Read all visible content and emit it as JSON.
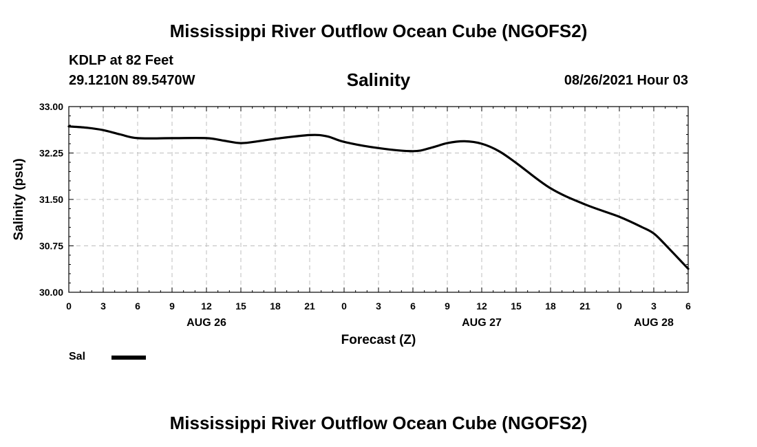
{
  "header": {
    "title": "Mississippi River Outflow Ocean Cube (NGOFS2)",
    "station": "KDLP at 82 Feet",
    "coordinates": "29.1210N  89.5470W",
    "variable": "Salinity",
    "datetime": "08/26/2021 Hour 03"
  },
  "footer": {
    "title": "Mississippi River Outflow Ocean Cube (NGOFS2)"
  },
  "legend": {
    "label": "Sal",
    "color": "#000000"
  },
  "chart_data": {
    "type": "line",
    "title": "Salinity",
    "xlabel": "Forecast (Z)",
    "ylabel": "Salinity (psu)",
    "xlim": [
      0,
      54
    ],
    "ylim": [
      30.0,
      33.0
    ],
    "grid": true,
    "x_tick_values": [
      0,
      3,
      6,
      9,
      12,
      15,
      18,
      21,
      24,
      27,
      30,
      33,
      36,
      39,
      42,
      45,
      48,
      51,
      54
    ],
    "x_tick_labels": [
      "0",
      "3",
      "6",
      "9",
      "12",
      "15",
      "18",
      "21",
      "0",
      "3",
      "6",
      "9",
      "12",
      "15",
      "18",
      "21",
      "0",
      "3",
      "6"
    ],
    "y_tick_values": [
      30.0,
      30.75,
      31.5,
      32.25,
      33.0
    ],
    "y_tick_labels": [
      "30.00",
      "30.75",
      "31.50",
      "32.25",
      "33.00"
    ],
    "date_labels": [
      {
        "label": "AUG 26",
        "x": 12
      },
      {
        "label": "AUG 27",
        "x": 36
      },
      {
        "label": "AUG 28",
        "x": 51
      }
    ],
    "series": [
      {
        "name": "Sal",
        "color": "#000000",
        "x": [
          0,
          1.5,
          3,
          4.5,
          6,
          9,
          12,
          13.5,
          15,
          16.5,
          18,
          21,
          22.5,
          24,
          27,
          30,
          31.5,
          33,
          34.5,
          36,
          37.5,
          39,
          42,
          45,
          48,
          50,
          51,
          52,
          54
        ],
        "y": [
          32.68,
          32.66,
          32.62,
          32.55,
          32.49,
          32.49,
          32.49,
          32.45,
          32.41,
          32.44,
          32.48,
          32.54,
          32.52,
          32.43,
          32.33,
          32.28,
          32.33,
          32.41,
          32.44,
          32.4,
          32.28,
          32.09,
          31.68,
          31.42,
          31.22,
          31.05,
          30.95,
          30.77,
          30.38
        ]
      }
    ]
  }
}
